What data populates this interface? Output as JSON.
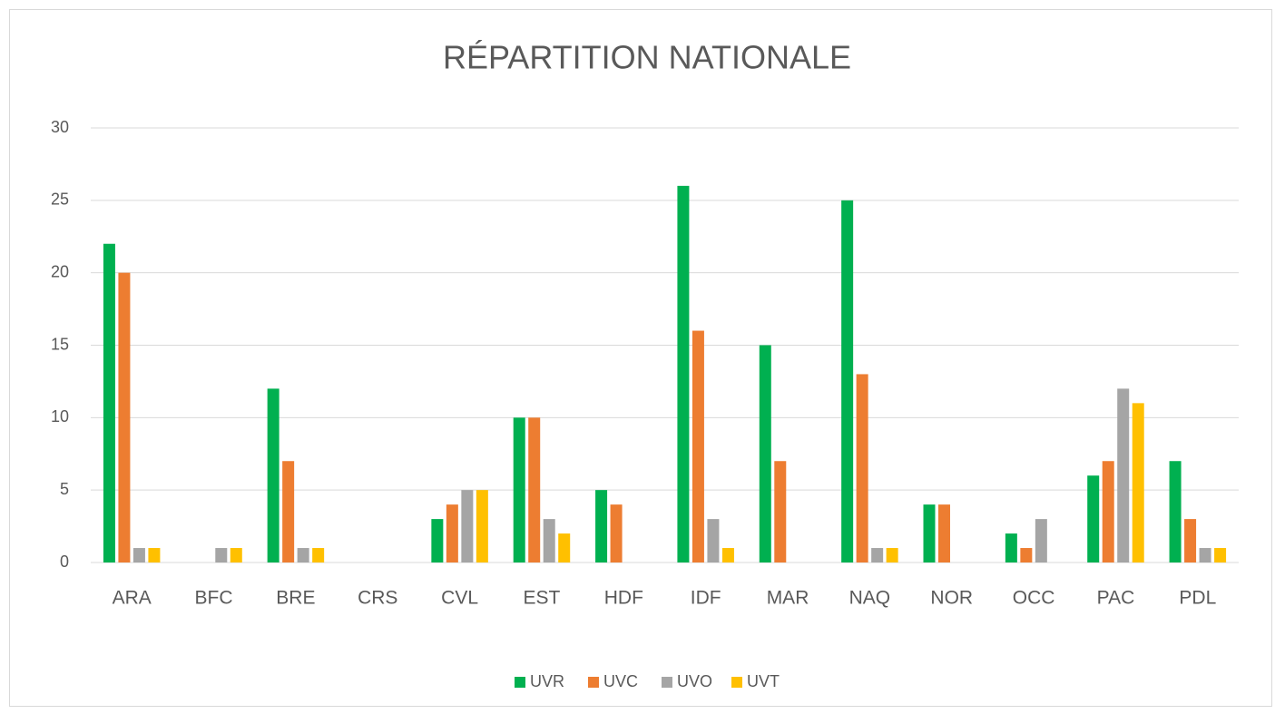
{
  "chart_data": {
    "type": "bar",
    "title": "RÉPARTITION NATIONALE",
    "categories": [
      "ARA",
      "BFC",
      "BRE",
      "CRS",
      "CVL",
      "EST",
      "HDF",
      "IDF",
      "MAR",
      "NAQ",
      "NOR",
      "OCC",
      "PAC",
      "PDL"
    ],
    "series": [
      {
        "name": "UVR",
        "color": "#00b050",
        "values": [
          22,
          0,
          12,
          0,
          3,
          10,
          5,
          26,
          15,
          25,
          4,
          2,
          6,
          7
        ]
      },
      {
        "name": "UVC",
        "color": "#ed7d31",
        "values": [
          20,
          0,
          7,
          0,
          4,
          10,
          4,
          16,
          7,
          13,
          4,
          1,
          7,
          3
        ]
      },
      {
        "name": "UVO",
        "color": "#a5a5a5",
        "values": [
          1,
          1,
          1,
          0,
          5,
          3,
          0,
          3,
          0,
          1,
          0,
          3,
          12,
          1
        ]
      },
      {
        "name": "UVT",
        "color": "#ffc000",
        "values": [
          1,
          1,
          1,
          0,
          5,
          2,
          0,
          1,
          0,
          1,
          0,
          0,
          11,
          1
        ]
      }
    ],
    "ylim": [
      0,
      30
    ],
    "yticks": [
      0,
      5,
      10,
      15,
      20,
      25,
      30
    ],
    "grid": true,
    "legend": "bottom"
  }
}
